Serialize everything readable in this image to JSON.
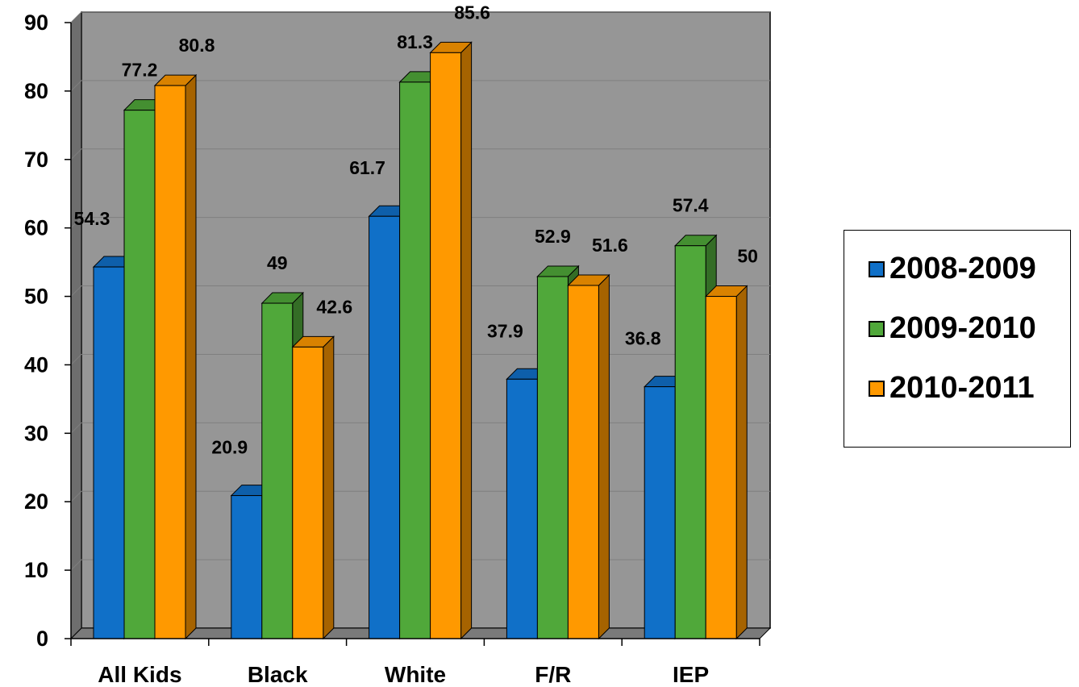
{
  "chart_data": {
    "type": "bar",
    "categories": [
      "All Kids",
      "Black",
      "White",
      "F/R",
      "IEP"
    ],
    "series": [
      {
        "name": "2008-2009",
        "values": [
          54.3,
          20.9,
          61.7,
          37.9,
          36.8
        ],
        "color": "#1070C8"
      },
      {
        "name": "2009-2010",
        "values": [
          77.2,
          49,
          81.3,
          52.9,
          57.4
        ],
        "color": "#50A83A"
      },
      {
        "name": "2010-2011",
        "values": [
          80.8,
          42.6,
          85.6,
          51.6,
          50
        ],
        "color": "#FF9900"
      }
    ],
    "data_labels": [
      [
        "54.3",
        "20.9",
        "61.7",
        "37.9",
        "36.8"
      ],
      [
        "77.2",
        "49",
        "81.3",
        "52.9",
        "57.4"
      ],
      [
        "80.8",
        "42.6",
        "85.6",
        "51.6",
        "50"
      ]
    ],
    "yticks": [
      "0",
      "10",
      "20",
      "30",
      "40",
      "50",
      "60",
      "70",
      "80",
      "90"
    ],
    "ylim": [
      0,
      90
    ],
    "grid": true,
    "legend_position": "right",
    "plot_background": "#969696",
    "title": "",
    "xlabel": "",
    "ylabel": ""
  }
}
